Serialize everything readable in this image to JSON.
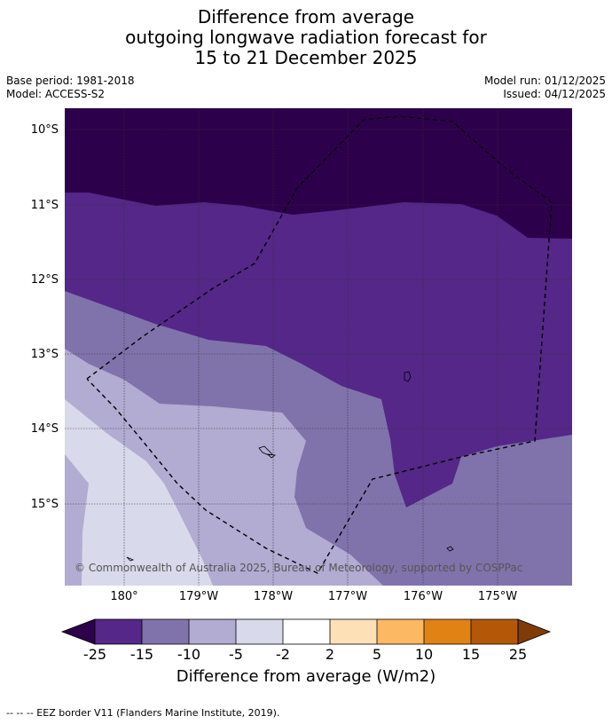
{
  "title": {
    "line1": "Difference from average",
    "line2": "outgoing longwave radiation forecast for",
    "line3": "15 to 21 December 2025"
  },
  "meta": {
    "base_period": "Base period: 1981-2018",
    "model": "Model: ACCESS-S2",
    "model_run": "Model run: 01/12/2025",
    "issued": "Issued: 04/12/2025"
  },
  "map": {
    "lat_labels": [
      "10°S",
      "11°S",
      "12°S",
      "13°S",
      "14°S",
      "15°S"
    ],
    "lon_labels": [
      "180°",
      "179°W",
      "178°W",
      "177°W",
      "176°W",
      "175°W"
    ],
    "copyright": "© Commonwealth of Australia 2025, Bureau of Meteorology, supported by COSPPac"
  },
  "colorbar": {
    "ticks": [
      "-25",
      "-15",
      "-10",
      "-5",
      "-2",
      "2",
      "5",
      "10",
      "15",
      "25"
    ],
    "label": "Difference from average (W/m2)",
    "colors": {
      "under": "#2d004b",
      "-25_-15": "#542788",
      "-15_-10": "#8073ac",
      "-10_-5": "#b2abd2",
      "-5_-2": "#d8daeb",
      "-2_2": "#ffffff",
      "2_5": "#fee0b6",
      "5_10": "#fdb863",
      "10_15": "#e08214",
      "15_25": "#b35806",
      "over": "#7f3b08"
    }
  },
  "footnote": "--  --  -- EEZ border V11 (Flanders Marine Institute, 2019)."
}
